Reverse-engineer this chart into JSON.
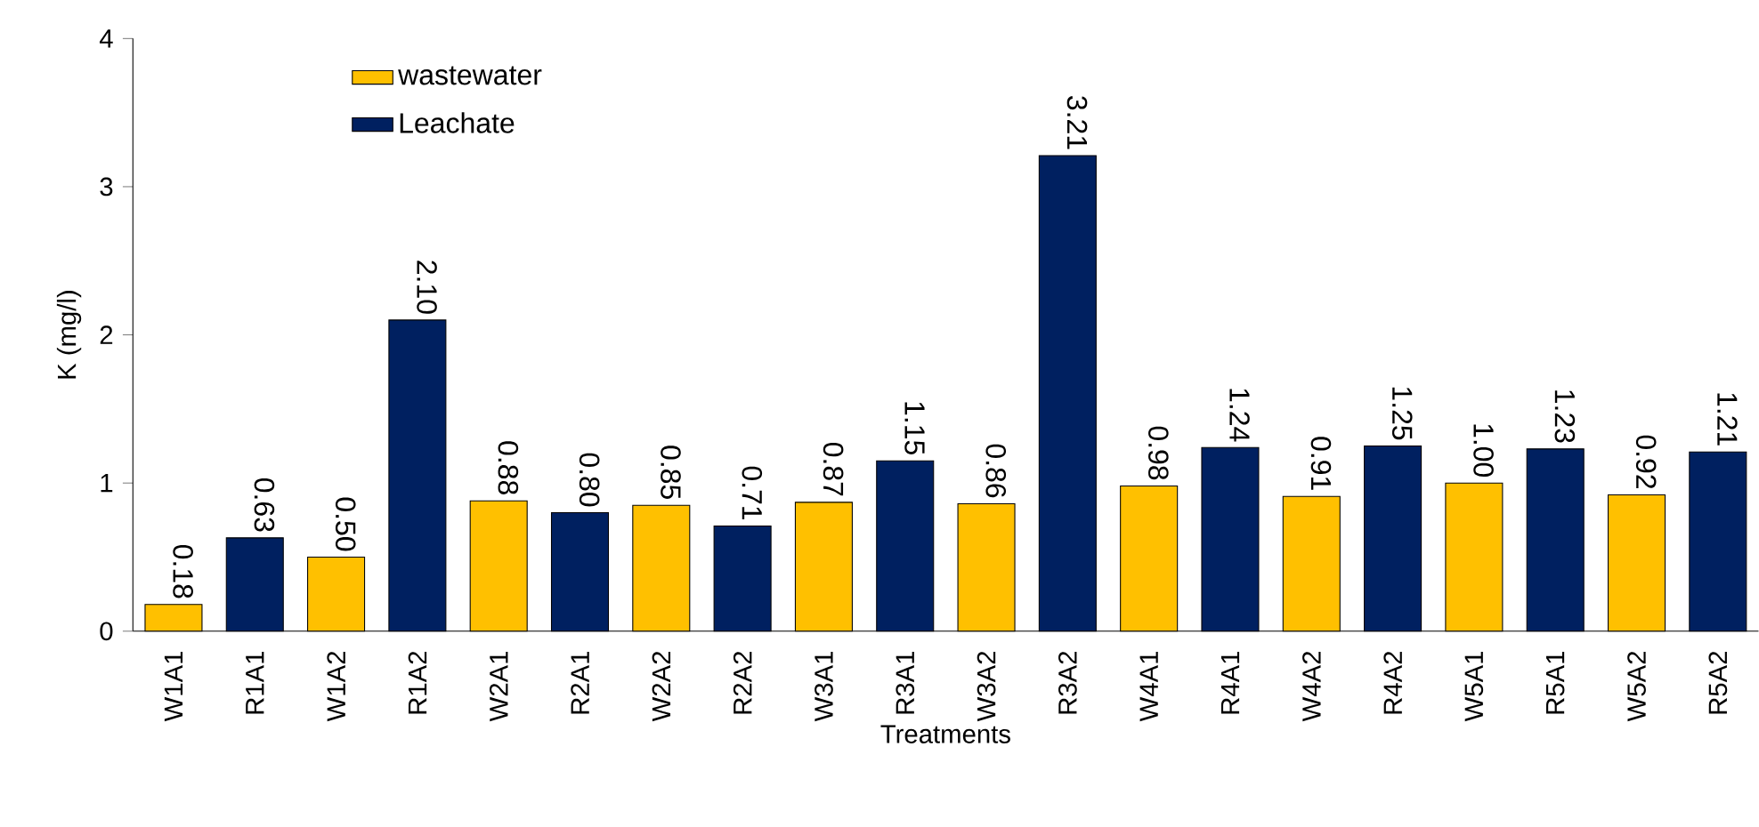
{
  "chart_data": {
    "type": "bar",
    "xlabel": "Treatments",
    "ylabel": "K (mg/l)",
    "categories": [
      "W1A1",
      "R1A1",
      "W1A2",
      "R1A2",
      "W2A1",
      "R2A1",
      "W2A2",
      "R2A2",
      "W3A1",
      "R3A1",
      "W3A2",
      "R3A2",
      "W4A1",
      "R4A1",
      "W4A2",
      "R4A2",
      "W5A1",
      "R5A1",
      "W5A2",
      "R5A2"
    ],
    "series": [
      {
        "name": "wastewater",
        "color": "#ffc000",
        "values": [
          0.18,
          null,
          0.5,
          null,
          0.88,
          null,
          0.85,
          null,
          0.87,
          null,
          0.86,
          null,
          0.98,
          null,
          0.91,
          null,
          1.0,
          null,
          0.92,
          null
        ],
        "value_labels": [
          "0.18",
          null,
          "0.50",
          null,
          "0.88",
          null,
          "0.85",
          null,
          "0.87",
          null,
          "0.86",
          null,
          "0.98",
          null,
          "0.91",
          null,
          "1.00",
          null,
          "0.92",
          null
        ]
      },
      {
        "name": "Leachate",
        "color": "#002060",
        "values": [
          null,
          0.63,
          null,
          2.1,
          null,
          0.8,
          null,
          0.71,
          null,
          1.15,
          null,
          3.21,
          null,
          1.24,
          null,
          1.25,
          null,
          1.23,
          null,
          1.21
        ],
        "value_labels": [
          null,
          "0.63",
          null,
          "2.10",
          null,
          "0.80",
          null,
          "0.71",
          null,
          "1.15",
          null,
          "3.21",
          null,
          "1.24",
          null,
          "1.25",
          null,
          "1.23",
          null,
          "1.21"
        ]
      }
    ],
    "ylim": [
      0,
      4
    ],
    "yticks": [
      0,
      1,
      2,
      3,
      4
    ],
    "legend": "top left"
  }
}
